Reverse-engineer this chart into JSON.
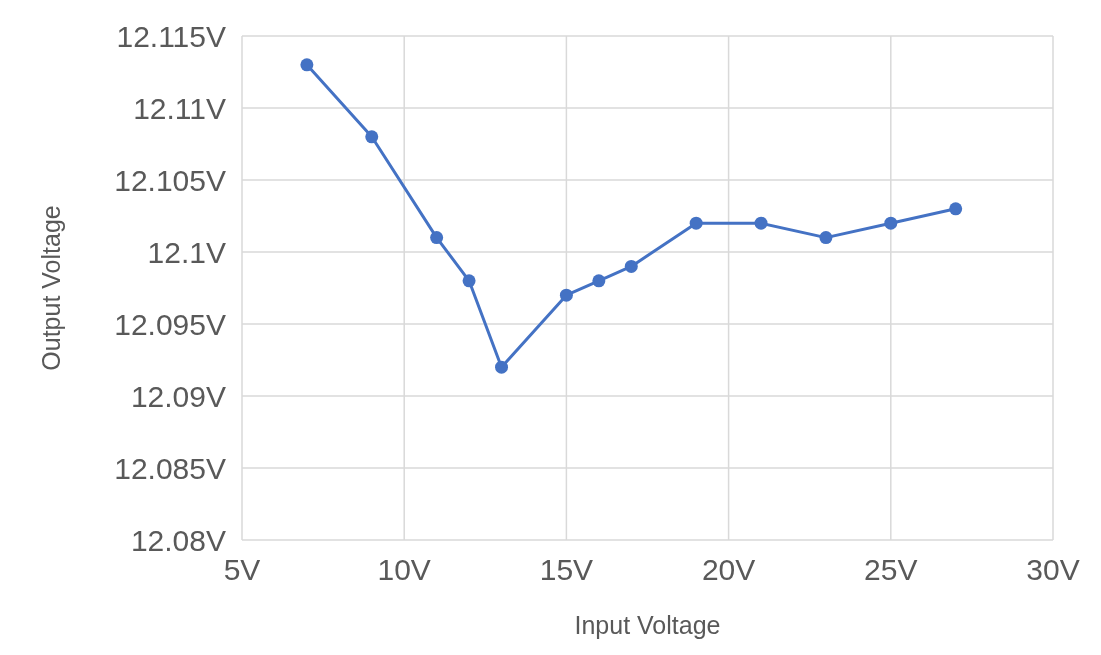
{
  "chart_data": {
    "type": "line",
    "xlabel": "Input Voltage",
    "ylabel": "Output Voltage",
    "x": [
      7,
      9,
      11,
      12,
      13,
      15,
      16,
      17,
      19,
      21,
      23,
      25,
      27
    ],
    "series": [
      {
        "color": "#4472c4",
        "values": [
          12.113,
          12.108,
          12.101,
          12.098,
          12.092,
          12.097,
          12.098,
          12.099,
          12.102,
          12.102,
          12.101,
          12.102,
          12.103
        ]
      }
    ],
    "xlim": [
      5,
      30
    ],
    "ylim": [
      12.08,
      12.115
    ],
    "xticks": [
      {
        "value": 5,
        "label": "5V"
      },
      {
        "value": 10,
        "label": "10V"
      },
      {
        "value": 15,
        "label": "15V"
      },
      {
        "value": 20,
        "label": "20V"
      },
      {
        "value": 25,
        "label": "25V"
      },
      {
        "value": 30,
        "label": "30V"
      }
    ],
    "yticks": [
      {
        "value": 12.08,
        "label": "12.08V"
      },
      {
        "value": 12.085,
        "label": "12.085V"
      },
      {
        "value": 12.09,
        "label": "12.09V"
      },
      {
        "value": 12.095,
        "label": "12.095V"
      },
      {
        "value": 12.1,
        "label": "12.1V"
      },
      {
        "value": 12.105,
        "label": "12.105V"
      },
      {
        "value": 12.11,
        "label": "12.11V"
      },
      {
        "value": 12.115,
        "label": "12.115V"
      }
    ],
    "grid": true,
    "marker": "circle",
    "line_style": "solid"
  }
}
